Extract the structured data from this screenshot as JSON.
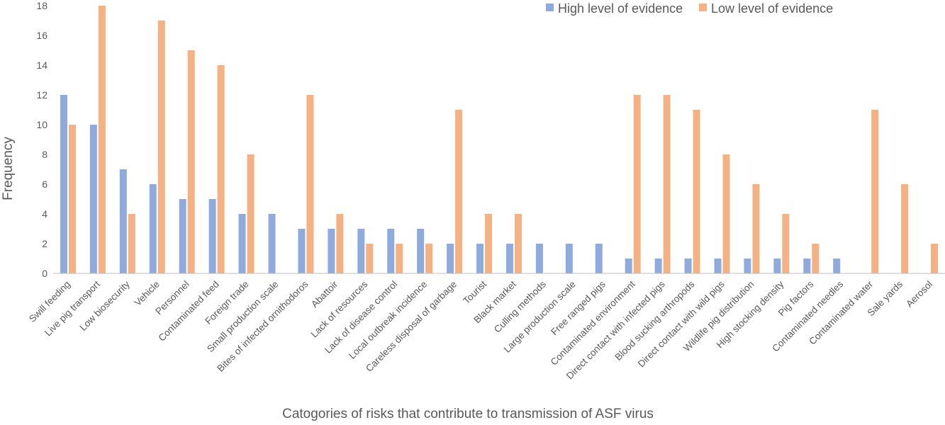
{
  "chart_data": {
    "type": "bar",
    "xlabel": "Catogories of risks that contribute to transmission of ASF virus",
    "ylabel": "Frequency",
    "ylim": [
      0,
      18
    ],
    "yticks": [
      0,
      2,
      4,
      6,
      8,
      10,
      12,
      14,
      16,
      18
    ],
    "grid": false,
    "legend_position": "top-right",
    "categories": [
      "Swill feeding",
      "Live pig transport",
      "Low biosecurity",
      "Vehicle",
      "Personnel",
      "Contaminated feed",
      "Foreign trade",
      "Small production scale",
      "Bites of infected ornithodoros",
      "Abattoir",
      "Lack of resources",
      "Lack of disease control",
      "Local outbreak incidence",
      "Careless disposal of garbage",
      "Tourist",
      "Black market",
      "Culling methods",
      "Large production scale",
      "Free ranged pigs",
      "Contaminated environment",
      "Direct contact with infected pigs",
      "Blood sucking arthropods",
      "Direct contact with wild pigs",
      "Wildlife pig distribution",
      "High stocking density",
      "Pig factors",
      "Contaminated needles",
      "Contaminated water",
      "Sale yards",
      "Aerosol"
    ],
    "series": [
      {
        "name": "High level of evidence",
        "color": "#8FAADC",
        "values": [
          12,
          10,
          7,
          6,
          5,
          5,
          4,
          4,
          3,
          3,
          3,
          3,
          3,
          2,
          2,
          2,
          2,
          2,
          2,
          1,
          1,
          1,
          1,
          1,
          1,
          1,
          1,
          0,
          0,
          0
        ]
      },
      {
        "name": "Low level of evidence",
        "color": "#F4B183",
        "values": [
          10,
          18,
          4,
          17,
          15,
          14,
          8,
          0,
          12,
          4,
          2,
          2,
          2,
          11,
          4,
          4,
          0,
          0,
          0,
          12,
          12,
          11,
          8,
          6,
          4,
          2,
          0,
          11,
          6,
          2
        ]
      }
    ]
  }
}
